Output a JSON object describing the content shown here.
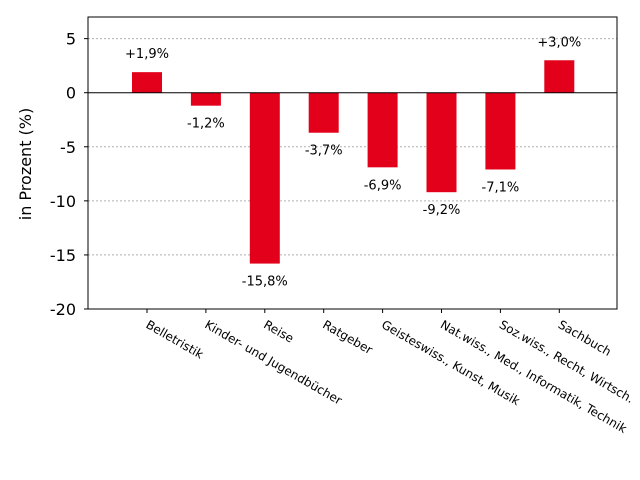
{
  "chart_data": {
    "type": "bar",
    "categories": [
      "Belletristik",
      "Kinder- und Jugendbücher",
      "Reise",
      "Ratgeber",
      "Geisteswiss., Kunst, Musik",
      "Nat.wiss., Med., Informatik, Technik",
      "Soz.wiss., Recht, Wirtsch.",
      "Sachbuch"
    ],
    "values": [
      1.9,
      -1.2,
      -15.8,
      -3.7,
      -6.9,
      -9.2,
      -7.1,
      3.0
    ],
    "data_labels": [
      "+1,9%",
      "-1,2%",
      "-15,8%",
      "-3,7%",
      "-6,9%",
      "-9,2%",
      "-7,1%",
      "+3,0%"
    ],
    "title": "",
    "xlabel": "",
    "ylabel": "in Prozent (%)",
    "ylim": [
      -20,
      7
    ],
    "yticks": [
      5,
      0,
      -5,
      -10,
      -15,
      -20
    ],
    "ytick_labels": [
      "5",
      "0",
      "-5",
      "-10",
      "-15",
      "-20"
    ],
    "grid": "horizontal dotted",
    "bar_color": "#e2001a",
    "zero_line_color": "#000000",
    "grid_color": "#b0b0b0"
  }
}
